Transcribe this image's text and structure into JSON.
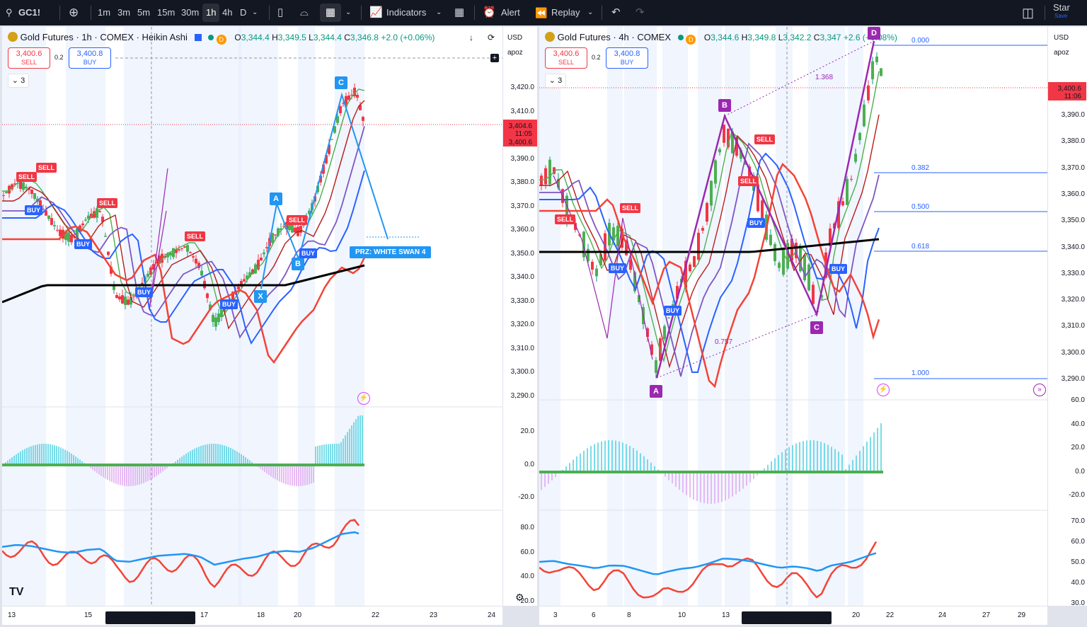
{
  "toolbar": {
    "symbol": "GC1!",
    "intervals": [
      "1m",
      "3m",
      "5m",
      "15m",
      "30m",
      "1h",
      "4h",
      "D"
    ],
    "active_interval": "1h",
    "indicators": "Indicators",
    "alert": "Alert",
    "replay": "Replay",
    "star": "Star",
    "save": "Save"
  },
  "left": {
    "title": "Gold Futures · 1h · COMEX · Heikin Ashi",
    "o": "3,344.4",
    "h": "3,349.5",
    "l": "3,344.4",
    "c": "3,346.8",
    "chg": "+2.0 (+0.06%)",
    "sell_price": "3,400.6",
    "sell_label": "SELL",
    "buy_price": "3,400.8",
    "buy_label": "BUY",
    "spread": "0.2",
    "collapse": "3",
    "currency": "USD",
    "scale_user": "apoz",
    "price_ticks": [
      "3,420.0",
      "3,410.0",
      "3,400.0",
      "3,390.0",
      "3,380.0",
      "3,370.0",
      "3,360.0",
      "3,350.0",
      "3,340.0",
      "3,330.0",
      "3,320.0",
      "3,310.0",
      "3,300.0",
      "3,290.0"
    ],
    "last_price": "3,404.6",
    "countdown": "11:05",
    "bid_price": "3,400.6",
    "osc_ticks": [
      "20.0",
      "0.0",
      "-20.0"
    ],
    "rsi_ticks": [
      "80.0",
      "60.0",
      "40.0",
      "20.0"
    ],
    "x_ticks": [
      "13",
      "15",
      "17",
      "18",
      "20",
      "22",
      "23",
      "24"
    ],
    "x_highlight": "Wed 16 Jul '25   02:00 AM",
    "patterns": [
      "X",
      "A",
      "B",
      "C"
    ],
    "prz": "PRZ: WHITE SWAN 4",
    "signals": [
      "SELL",
      "SELL",
      "BUY",
      "SELL",
      "BUY",
      "BUY",
      "SELL",
      "BUY",
      "SELL",
      "BUY",
      "BUY"
    ]
  },
  "right": {
    "title": "Gold Futures · 4h · COMEX",
    "o": "3,344.6",
    "h": "3,349.8",
    "l": "3,342.2",
    "c": "3,347",
    "chg": "+2.6 (+0.08%)",
    "sell_price": "3,400.6",
    "sell_label": "SELL",
    "buy_price": "3,400.8",
    "buy_label": "BUY",
    "spread": "0.2",
    "collapse": "3",
    "currency": "USD",
    "scale_user": "apoz",
    "price_ticks": [
      "3,390.0",
      "3,380.0",
      "3,370.0",
      "3,360.0",
      "3,350.0",
      "3,340.0",
      "3,330.0",
      "3,320.0",
      "3,310.0",
      "3,300.0",
      "3,290.0"
    ],
    "last_price": "3,400.6",
    "countdown": "11:06",
    "osc_ticks": [
      "60.0",
      "40.0",
      "20.0",
      "0.0",
      "-20.0"
    ],
    "rsi_ticks": [
      "70.0",
      "60.0",
      "50.0",
      "40.0",
      "30.0"
    ],
    "x_ticks": [
      "3",
      "6",
      "8",
      "10",
      "13",
      "20",
      "22",
      "24",
      "27",
      "29"
    ],
    "x_highlight": "Wed 16 Jul '25   12:00 AM",
    "patterns": [
      "A",
      "B",
      "C",
      "D"
    ],
    "fib": [
      "0.000",
      "0.382",
      "0.500",
      "0.618",
      "1.000"
    ],
    "ratios": [
      "1.368",
      "0.757"
    ],
    "signals": [
      "SELL",
      "SELL",
      "SELL",
      "SELL",
      "BUY",
      "BUY",
      "BUY",
      "BUY"
    ]
  }
}
